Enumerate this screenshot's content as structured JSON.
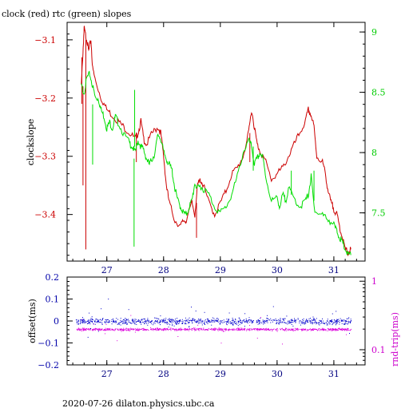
{
  "page": {
    "title": "clock (red) rtc (green) slopes",
    "footer": "2020-07-26  dilaton.physics.ubc.ca"
  },
  "chart_data": [
    {
      "type": "line",
      "title": "clock (red) rtc (green) slopes",
      "xlabel": "",
      "ylabel_left": "clockslope",
      "x_ticks": [
        27,
        28,
        29,
        30,
        31
      ],
      "xlim": [
        26.3,
        31.55
      ],
      "ylim_left": [
        -3.48,
        -3.07
      ],
      "y_ticks_left": [
        -3.1,
        -3.2,
        -3.3,
        -3.4
      ],
      "ylim_right": [
        7.1,
        9.08
      ],
      "y_ticks_right": [
        9,
        8.5,
        8,
        7.5
      ],
      "colors": {
        "clock": "#cc0000",
        "rtc": "#00dd00",
        "axis_right": "#00cc00",
        "axis_left": "#cc0000"
      },
      "series": [
        {
          "axis": "left",
          "color": "#cc0000",
          "x": [
            26.55,
            26.58,
            26.6,
            26.62,
            26.65,
            26.68,
            26.72,
            26.75,
            26.8,
            26.9,
            27.0,
            27.1,
            27.2,
            27.3,
            27.4,
            27.5,
            27.55,
            27.6,
            27.65,
            27.7,
            27.8,
            27.9,
            27.95,
            28.0,
            28.05,
            28.1,
            28.2,
            28.3,
            28.35,
            28.4,
            28.5,
            28.55,
            28.6,
            28.65,
            28.7,
            28.8,
            28.9,
            29.0,
            29.1,
            29.2,
            29.3,
            29.4,
            29.5,
            29.55,
            29.6,
            29.65,
            29.7,
            29.8,
            29.9,
            30.0,
            30.1,
            30.2,
            30.3,
            30.4,
            30.5,
            30.55,
            30.6,
            30.65,
            30.7,
            30.8,
            30.85,
            30.9,
            30.95,
            31.0,
            31.05,
            31.1,
            31.15,
            31.2,
            31.25,
            31.3
          ],
          "y": [
            -3.18,
            -3.12,
            -3.08,
            -3.09,
            -3.1,
            -3.12,
            -3.1,
            -3.15,
            -3.17,
            -3.2,
            -3.22,
            -3.23,
            -3.24,
            -3.25,
            -3.26,
            -3.27,
            -3.26,
            -3.24,
            -3.27,
            -3.28,
            -3.26,
            -3.25,
            -3.26,
            -3.3,
            -3.35,
            -3.38,
            -3.41,
            -3.42,
            -3.41,
            -3.41,
            -3.38,
            -3.4,
            -3.35,
            -3.34,
            -3.35,
            -3.38,
            -3.4,
            -3.38,
            -3.36,
            -3.33,
            -3.32,
            -3.3,
            -3.26,
            -3.22,
            -3.25,
            -3.28,
            -3.29,
            -3.31,
            -3.34,
            -3.33,
            -3.32,
            -3.3,
            -3.28,
            -3.26,
            -3.24,
            -3.22,
            -3.23,
            -3.25,
            -3.3,
            -3.31,
            -3.33,
            -3.36,
            -3.38,
            -3.39,
            -3.4,
            -3.42,
            -3.44,
            -3.46,
            -3.465,
            -3.46
          ],
          "spikes": [
            {
              "x": 26.58,
              "y_from": -3.18,
              "y_to": -3.35
            },
            {
              "x": 26.63,
              "y_from": -3.1,
              "y_to": -3.46
            },
            {
              "x": 26.56,
              "y_from": -3.13,
              "y_to": -3.21
            },
            {
              "x": 27.52,
              "y_from": -3.26,
              "y_to": -3.31
            },
            {
              "x": 28.58,
              "y_from": -3.38,
              "y_to": -3.44
            },
            {
              "x": 29.52,
              "y_from": -3.26,
              "y_to": -3.31
            }
          ]
        },
        {
          "axis": "right",
          "color": "#00dd00",
          "x": [
            26.55,
            26.6,
            26.65,
            26.7,
            26.75,
            26.8,
            26.85,
            26.9,
            26.95,
            27.0,
            27.05,
            27.1,
            27.15,
            27.2,
            27.3,
            27.4,
            27.45,
            27.5,
            27.55,
            27.6,
            27.65,
            27.7,
            27.75,
            27.8,
            27.85,
            27.9,
            27.95,
            28.0,
            28.05,
            28.1,
            28.15,
            28.2,
            28.25,
            28.3,
            28.35,
            28.4,
            28.45,
            28.5,
            28.55,
            28.6,
            28.65,
            28.7,
            28.8,
            28.9,
            29.0,
            29.1,
            29.2,
            29.3,
            29.4,
            29.5,
            29.55,
            29.6,
            29.65,
            29.7,
            29.75,
            29.8,
            29.9,
            30.0,
            30.05,
            30.1,
            30.15,
            30.2,
            30.3,
            30.4,
            30.5,
            30.55,
            30.6,
            30.65,
            30.7,
            30.8,
            30.9,
            31.0,
            31.05,
            31.1,
            31.15,
            31.2,
            31.25,
            31.3
          ],
          "y": [
            8.55,
            8.5,
            8.62,
            8.65,
            8.55,
            8.45,
            8.45,
            8.35,
            8.3,
            8.2,
            8.25,
            8.2,
            8.3,
            8.25,
            8.15,
            8.08,
            8.05,
            8.0,
            8.1,
            8.05,
            8.02,
            7.95,
            7.9,
            7.95,
            8.0,
            8.15,
            8.12,
            8.0,
            7.95,
            7.9,
            7.85,
            7.7,
            7.6,
            7.55,
            7.5,
            7.48,
            7.55,
            7.6,
            7.75,
            7.7,
            7.72,
            7.7,
            7.65,
            7.55,
            7.5,
            7.55,
            7.65,
            7.8,
            8.0,
            8.1,
            8.05,
            7.9,
            7.95,
            8.0,
            7.95,
            7.8,
            7.6,
            7.62,
            7.55,
            7.65,
            7.6,
            7.7,
            7.62,
            7.55,
            7.6,
            7.65,
            7.8,
            7.55,
            7.5,
            7.48,
            7.45,
            7.4,
            7.35,
            7.3,
            7.25,
            7.2,
            7.15,
            7.15
          ],
          "spikes": [
            {
              "x": 27.48,
              "y_from": 7.95,
              "y_to": 7.22
            },
            {
              "x": 27.49,
              "y_from": 8.05,
              "y_to": 8.52
            },
            {
              "x": 26.75,
              "y_from": 8.4,
              "y_to": 7.9
            },
            {
              "x": 29.58,
              "y_from": 8.05,
              "y_to": 7.85
            },
            {
              "x": 30.25,
              "y_from": 7.65,
              "y_to": 7.85
            },
            {
              "x": 30.65,
              "y_from": 7.6,
              "y_to": 7.85
            }
          ]
        }
      ]
    },
    {
      "type": "scatter",
      "ylabel_left": "offset(ms)",
      "ylabel_right": "rnd-trip(ms)",
      "x_ticks": [
        27,
        28,
        29,
        30,
        31
      ],
      "xlim": [
        26.3,
        31.55
      ],
      "ylim_left": [
        -0.2,
        0.2
      ],
      "y_ticks_left": [
        0.2,
        0.1,
        0,
        -0.1,
        -0.2
      ],
      "y_tick_labels_left": [
        "0.2",
        "0.1",
        "0",
        "−0.1",
        "−0.2"
      ],
      "right_scale": "log",
      "y_ticks_right": [
        1,
        0.1
      ],
      "colors": {
        "offset": "#0000cc",
        "rnd_trip": "#dd00dd"
      },
      "series": [
        {
          "name": "offset",
          "axis": "left",
          "points": "dense band near 0, spread about ±0.03 ms, occasional outliers to ±0.15",
          "x_range": [
            26.45,
            31.3
          ],
          "center": 0.0,
          "spread": 0.025
        },
        {
          "name": "rnd-trip",
          "axis": "right",
          "points": "dense band near 0.2 ms",
          "x_range": [
            26.45,
            31.3
          ],
          "center": 0.2,
          "spread_log": 0.03
        }
      ]
    }
  ]
}
